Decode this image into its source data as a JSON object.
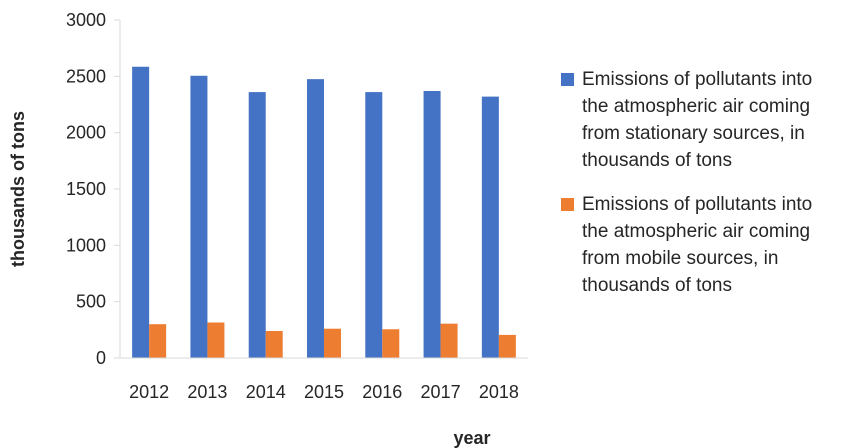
{
  "chart_data": {
    "type": "bar",
    "categories": [
      "2012",
      "2013",
      "2014",
      "2015",
      "2016",
      "2017",
      "2018"
    ],
    "series": [
      {
        "name": "Emissions of pollutants into the atmospheric air coming from stationary sources, in thousands of tons",
        "color": "#4472C4",
        "values": [
          2585,
          2505,
          2360,
          2475,
          2360,
          2370,
          2320
        ]
      },
      {
        "name": "Emissions of pollutants into the atmospheric air coming from mobile sources, in thousands of tons",
        "color": "#ED7D31",
        "values": [
          300,
          315,
          240,
          260,
          255,
          305,
          205
        ]
      }
    ],
    "xlabel": "year",
    "ylabel": "thousands of tons",
    "ylim": [
      0,
      3000
    ],
    "yticks": [
      0,
      500,
      1000,
      1500,
      2000,
      2500,
      3000
    ],
    "grid": false,
    "legend": "right"
  }
}
